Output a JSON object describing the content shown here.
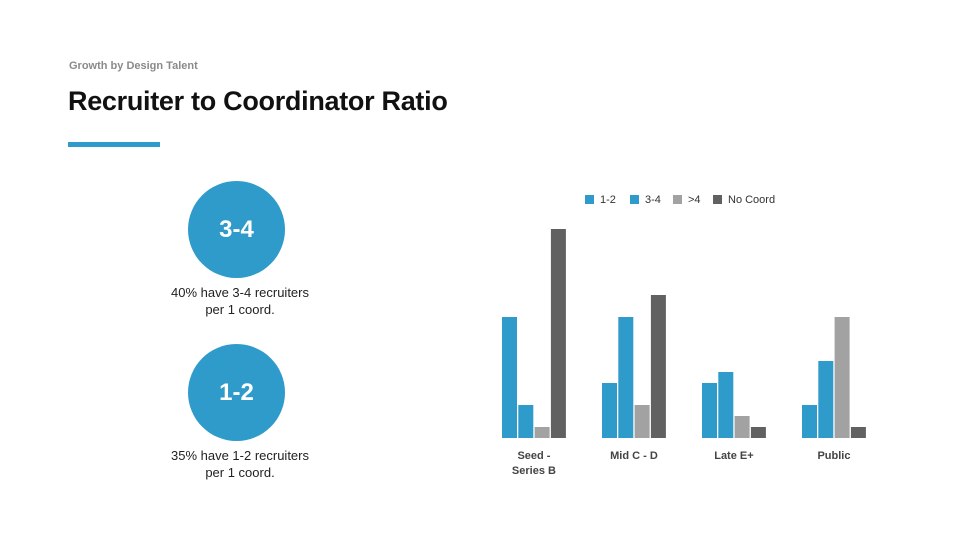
{
  "slide": {
    "kicker": "Growth by Design Talent",
    "title": "Recruiter to Coordinator Ratio"
  },
  "colors": {
    "accent": "#2e9bcb",
    "ratio_1_2": "#2e9bcb",
    "ratio_3_4": "#2e9bcb",
    "ratio_gt4": "#a2a2a2",
    "no_coord": "#616161"
  },
  "stats": [
    {
      "value": "3-4",
      "caption_line1": "40% have 3-4 recruiters",
      "caption_line2": "per 1 coord."
    },
    {
      "value": "1-2",
      "caption_line1": "35% have 1-2 recruiters",
      "caption_line2": "per 1 coord."
    }
  ],
  "chart_data": {
    "type": "bar",
    "categories": [
      [
        "Seed -",
        "Series B"
      ],
      [
        "Mid C - D"
      ],
      [
        "Late E+"
      ],
      [
        "Public"
      ]
    ],
    "series": [
      {
        "name": "1-2",
        "color": "#2e9bcb",
        "values": [
          11,
          5,
          5,
          3
        ]
      },
      {
        "name": "3-4",
        "color": "#2e9bcb",
        "values": [
          3,
          11,
          6,
          7
        ]
      },
      {
        "name": ">4",
        "color": "#a2a2a2",
        "values": [
          1,
          3,
          2,
          11
        ]
      },
      {
        "name": "No Coord",
        "color": "#616161",
        "values": [
          19,
          13,
          1,
          1
        ]
      }
    ],
    "ylim": [
      0,
      19
    ],
    "grid": false,
    "legend_position": "top",
    "xlabel": "",
    "ylabel": ""
  }
}
